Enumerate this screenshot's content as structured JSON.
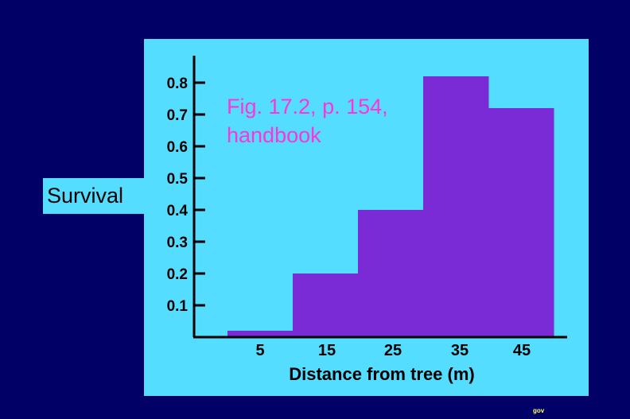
{
  "slide": {
    "footer_mark": "gov"
  },
  "colors": {
    "background": "#000066",
    "panel": "#55ddff",
    "bar": "#7a2bd6",
    "annotation": "#ff33dd",
    "axis": "#000000"
  },
  "chart_data": {
    "type": "bar",
    "title": "",
    "xlabel": "Distance from tree (m)",
    "ylabel": "Survival",
    "categories": [
      "5",
      "15",
      "25",
      "35",
      "45"
    ],
    "values": [
      0.02,
      0.2,
      0.4,
      0.82,
      0.72
    ],
    "yticks": [
      "0.1",
      "0.2",
      "0.3",
      "0.4",
      "0.5",
      "0.6",
      "0.7",
      "0.8"
    ],
    "ytick_values": [
      0.1,
      0.2,
      0.3,
      0.4,
      0.5,
      0.6,
      0.7,
      0.8
    ],
    "ylim": [
      0,
      0.8
    ],
    "grid": false,
    "annotation": {
      "line1": "Fig. 17.2, p. 154,",
      "line2": "handbook"
    }
  }
}
